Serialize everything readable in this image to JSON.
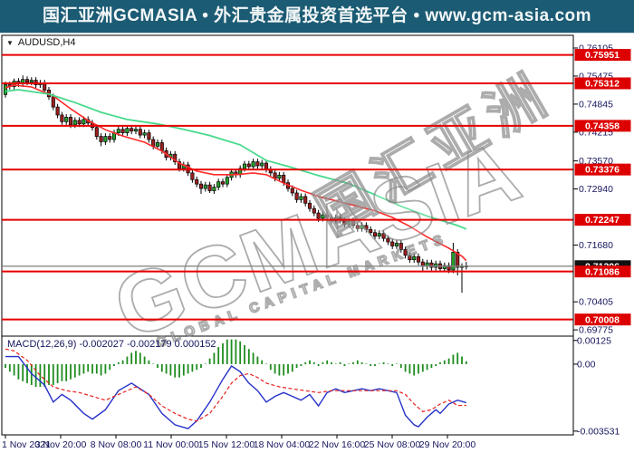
{
  "header": {
    "title": "国汇亚洲GCMASIA • 外汇贵金属投资首选平台 • www.gcm-asia.com"
  },
  "chart": {
    "symbol_label": "AUDUSD,H4",
    "dropdown_icon": "▼",
    "watermark": {
      "main": "GCMASIA",
      "sub": "GLOBAL CAPITAL MARKETS",
      "cn": "国汇亚洲"
    },
    "colors": {
      "banner_bg": "#1b5b74",
      "bull": "#22a329",
      "bear": "#9c1f1f",
      "wick": "#000000",
      "ma_fast": "#ff2a2a",
      "ma_slow": "#47d98c",
      "sr_line": "#e60000",
      "sr_label_bg": "#dd0000",
      "axis_text": "#15155e",
      "current_price_line": "#888888",
      "current_price_label_bg": "#111111",
      "macd_hist": "#1e8c1e",
      "macd_line": "#2632c8",
      "macd_signal": "#e82020"
    }
  },
  "macd_panel": {
    "label": "MACD(12,26,9) -0.002027 -0.002179 0.000152"
  },
  "chart_data": [
    {
      "type": "candlestick",
      "title": "AUDUSD,H4",
      "price_axis": {
        "min": 0.69655,
        "max": 0.7639,
        "visible_ticks": [
          0.76105,
          0.75475,
          0.74845,
          0.74215,
          0.7357,
          0.7294,
          0.7168,
          0.70405,
          0.69775
        ]
      },
      "sr_levels": [
        0.75951,
        0.75312,
        0.74358,
        0.73376,
        0.72247,
        0.71086,
        0.70008
      ],
      "current_price": 0.71206,
      "x_labels": [
        "1 Nov 2021",
        "3 Nov 20:00",
        "8 Nov 08:00",
        "11 Nov 00:00",
        "15 Nov 12:00",
        "18 Nov 04:00",
        "22 Nov 16:00",
        "25 Nov 08:00",
        "29 Nov 20:00"
      ],
      "first_open": 0.7506,
      "default_wick": 0.0007,
      "closes": [
        0.7528,
        0.7524,
        0.7536,
        0.753,
        0.754,
        0.7534,
        0.7538,
        0.7528,
        0.7532,
        0.7516,
        0.7501,
        0.7478,
        0.746,
        0.7445,
        0.7455,
        0.7438,
        0.7448,
        0.744,
        0.745,
        0.7442,
        0.7432,
        0.7412,
        0.74,
        0.7412,
        0.7405,
        0.742,
        0.7428,
        0.742,
        0.743,
        0.7424,
        0.7428,
        0.7415,
        0.742,
        0.7405,
        0.739,
        0.7398,
        0.738,
        0.7365,
        0.7372,
        0.7355,
        0.734,
        0.7348,
        0.733,
        0.7315,
        0.7305,
        0.7295,
        0.7303,
        0.729,
        0.7298,
        0.731,
        0.7305,
        0.732,
        0.7332,
        0.7326,
        0.734,
        0.735,
        0.7344,
        0.7355,
        0.7346,
        0.7352,
        0.7338,
        0.733,
        0.7318,
        0.7325,
        0.7308,
        0.7295,
        0.7285,
        0.727,
        0.7277,
        0.7262,
        0.725,
        0.724,
        0.7228,
        0.7236,
        0.723,
        0.7222,
        0.723,
        0.7224,
        0.7215,
        0.7222,
        0.7212,
        0.7205,
        0.7212,
        0.7203,
        0.7196,
        0.7188,
        0.7194,
        0.7183,
        0.7175,
        0.7166,
        0.7172,
        0.7158,
        0.7145,
        0.7135,
        0.7142,
        0.713,
        0.712,
        0.7128,
        0.7118,
        0.7126,
        0.7115,
        0.7122,
        0.7112,
        0.7152,
        0.7118,
        0.712,
        0.7121
      ],
      "wick_overrides": {
        "2": {
          "h": 0.7542
        },
        "4": {
          "h": 0.7549
        },
        "22": {
          "l": 0.739
        },
        "45": {
          "l": 0.7283
        },
        "47": {
          "l": 0.7285
        },
        "57": {
          "h": 0.7362
        },
        "72": {
          "l": 0.722
        },
        "96": {
          "l": 0.7108
        },
        "103": {
          "h": 0.7173
        },
        "104": {
          "l": 0.71
        },
        "105": {
          "l": 0.7061
        },
        "106": {
          "h": 0.713
        }
      },
      "ma_slow_green": [
        [
          0,
          0.7513
        ],
        [
          3,
          0.7517
        ],
        [
          10,
          0.7507
        ],
        [
          16,
          0.7488
        ],
        [
          22,
          0.7466
        ],
        [
          28,
          0.745
        ],
        [
          35,
          0.744
        ],
        [
          41,
          0.7428
        ],
        [
          47,
          0.7414
        ],
        [
          54,
          0.7393
        ],
        [
          60,
          0.7358
        ],
        [
          66,
          0.7342
        ],
        [
          72,
          0.7324
        ],
        [
          79,
          0.7306
        ],
        [
          85,
          0.7281
        ],
        [
          91,
          0.7255
        ],
        [
          97,
          0.7233
        ],
        [
          104,
          0.7212
        ],
        [
          106,
          0.7204
        ]
      ],
      "ma_fast_red": [
        [
          0,
          0.7521
        ],
        [
          2,
          0.7527
        ],
        [
          6,
          0.7523
        ],
        [
          11,
          0.7503
        ],
        [
          15,
          0.7474
        ],
        [
          19,
          0.7448
        ],
        [
          23,
          0.7427
        ],
        [
          27,
          0.7413
        ],
        [
          32,
          0.7399
        ],
        [
          36,
          0.7379
        ],
        [
          40,
          0.7352
        ],
        [
          44,
          0.7334
        ],
        [
          48,
          0.7326
        ],
        [
          53,
          0.7326
        ],
        [
          57,
          0.733
        ],
        [
          60,
          0.7326
        ],
        [
          64,
          0.7307
        ],
        [
          68,
          0.7291
        ],
        [
          72,
          0.7277
        ],
        [
          77,
          0.7265
        ],
        [
          81,
          0.7255
        ],
        [
          85,
          0.7245
        ],
        [
          89,
          0.723
        ],
        [
          93,
          0.721
        ],
        [
          97,
          0.7186
        ],
        [
          102,
          0.7161
        ],
        [
          105,
          0.7143
        ],
        [
          106,
          0.7133
        ]
      ]
    },
    {
      "type": "macd",
      "label": "MACD(12,26,9) -0.002027 -0.002179 0.000152",
      "value_axis": {
        "min": -0.00373,
        "max": 0.00143,
        "visible_ticks": [
          {
            "v": 0.00125,
            "label": "0.00125"
          },
          {
            "v": 0,
            "label": "0.00"
          },
          {
            "v": -0.003531,
            "label": "-0.003531"
          }
        ]
      },
      "histogram": [
        -0.0002,
        -0.0004,
        -0.0006,
        -0.0008,
        -0.0009,
        -0.001,
        -0.0011,
        -0.0012,
        -0.0012,
        -0.0012,
        -0.0011,
        -0.0011,
        -0.001,
        -0.0009,
        -0.0009,
        -0.0008,
        -0.0007,
        -0.0006,
        -0.0005,
        -0.0004,
        -0.0005,
        -0.0005,
        -0.0006,
        -0.0005,
        -0.0003,
        -0.0001,
        0.0001,
        0.0002,
        0.0004,
        0.0006,
        0.0007,
        0.0006,
        0.0004,
        0.0002,
        0.0,
        -0.0002,
        -0.0004,
        -0.0005,
        -0.0006,
        -0.0007,
        -0.0007,
        -0.0006,
        -0.0005,
        -0.0004,
        -0.0003,
        -0.0002,
        0.0,
        0.0003,
        0.0006,
        0.0009,
        0.0011,
        0.0013,
        0.0013,
        0.0013,
        0.0012,
        0.001,
        0.0008,
        0.0006,
        0.0004,
        0.0002,
        0.0,
        -0.0003,
        -0.0005,
        -0.0006,
        -0.0006,
        -0.0005,
        -0.0004,
        -0.0002,
        -0.0001,
        0.0001,
        0.0002,
        0.0001,
        -0.0001,
        0.0001,
        0.0002,
        0.0001,
        0.0,
        0.0001,
        -0.0001,
        0.0,
        0.0001,
        0.0002,
        0.0001,
        0.0,
        -0.0001,
        -0.0001,
        0.0,
        0.0001,
        0.0,
        -0.0001,
        0.0,
        -0.0002,
        -0.0004,
        -0.0005,
        -0.0006,
        -0.0005,
        -0.0004,
        -0.0003,
        -0.0002,
        -0.0001,
        0.0001,
        0.0002,
        0.0003,
        0.0005,
        0.0006,
        0.0004,
        0.00015
      ],
      "macd_line": [
        [
          0,
          0.0004
        ],
        [
          3,
          0.0004
        ],
        [
          6,
          -0.0005
        ],
        [
          9,
          -0.0011
        ],
        [
          11,
          -0.002
        ],
        [
          13,
          -0.0016
        ],
        [
          15,
          -0.0019
        ],
        [
          18,
          -0.0026
        ],
        [
          20,
          -0.0029
        ],
        [
          23,
          -0.0024
        ],
        [
          26,
          -0.0014
        ],
        [
          29,
          -0.001
        ],
        [
          33,
          -0.0016
        ],
        [
          36,
          -0.0026
        ],
        [
          39,
          -0.0032
        ],
        [
          42,
          -0.0034
        ],
        [
          44,
          -0.003
        ],
        [
          47,
          -0.002
        ],
        [
          50,
          -0.0008
        ],
        [
          52,
          -0.0001
        ],
        [
          54,
          -0.0004
        ],
        [
          56,
          -0.001
        ],
        [
          58,
          -0.0014
        ],
        [
          60,
          -0.002
        ],
        [
          62,
          -0.0017
        ],
        [
          64,
          -0.0015
        ],
        [
          66,
          -0.0017
        ],
        [
          68,
          -0.0019
        ],
        [
          70,
          -0.0016
        ],
        [
          72,
          -0.0022
        ],
        [
          74,
          -0.0015
        ],
        [
          76,
          -0.0013
        ],
        [
          78,
          -0.0015
        ],
        [
          80,
          -0.0014
        ],
        [
          82,
          -0.0013
        ],
        [
          84,
          -0.0014
        ],
        [
          86,
          -0.0013
        ],
        [
          88,
          -0.0014
        ],
        [
          90,
          -0.0015
        ],
        [
          92,
          -0.0027
        ],
        [
          94,
          -0.0032
        ],
        [
          95,
          -0.0033
        ],
        [
          97,
          -0.0028
        ],
        [
          99,
          -0.0024
        ],
        [
          100,
          -0.0026
        ],
        [
          102,
          -0.0021
        ],
        [
          104,
          -0.0019
        ],
        [
          106,
          -0.002027
        ]
      ],
      "signal_line": [
        [
          0,
          0.0008
        ],
        [
          2,
          0.0007
        ],
        [
          5,
          0.0002
        ],
        [
          8,
          -0.0006
        ],
        [
          11,
          -0.0012
        ],
        [
          14,
          -0.0014
        ],
        [
          17,
          -0.0015
        ],
        [
          20,
          -0.0017
        ],
        [
          23,
          -0.0019
        ],
        [
          26,
          -0.0016
        ],
        [
          28,
          -0.0014
        ],
        [
          30,
          -0.0012
        ],
        [
          33,
          -0.0016
        ],
        [
          36,
          -0.0022
        ],
        [
          39,
          -0.0026
        ],
        [
          42,
          -0.0029
        ],
        [
          44,
          -0.003
        ],
        [
          47,
          -0.0026
        ],
        [
          50,
          -0.0017
        ],
        [
          52,
          -0.001
        ],
        [
          54,
          -0.0006
        ],
        [
          56,
          -0.0005
        ],
        [
          58,
          -0.0007
        ],
        [
          60,
          -0.001
        ],
        [
          63,
          -0.0012
        ],
        [
          66,
          -0.0013
        ],
        [
          69,
          -0.0014
        ],
        [
          72,
          -0.0015
        ],
        [
          75,
          -0.0014
        ],
        [
          78,
          -0.0014
        ],
        [
          82,
          -0.0014
        ],
        [
          86,
          -0.0014
        ],
        [
          90,
          -0.0014
        ],
        [
          92,
          -0.0016
        ],
        [
          94,
          -0.0021
        ],
        [
          96,
          -0.0025
        ],
        [
          98,
          -0.0024
        ],
        [
          100,
          -0.0021
        ],
        [
          102,
          -0.0019
        ],
        [
          104,
          -0.00218
        ],
        [
          106,
          -0.002179
        ]
      ]
    }
  ]
}
